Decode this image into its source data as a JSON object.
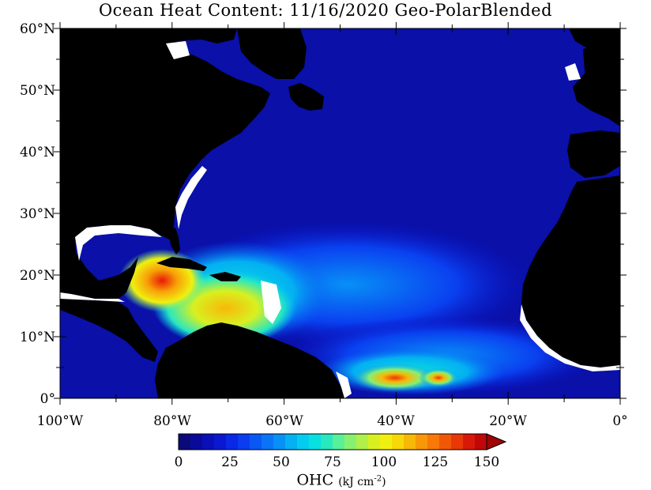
{
  "map": {
    "title": "Ocean Heat Content: 11/16/2020 Geo-PolarBlended",
    "lat_ticks": [
      "60°N",
      "50°N",
      "40°N",
      "30°N",
      "20°N",
      "10°N",
      "0°"
    ],
    "lon_ticks": [
      "100°W",
      "80°W",
      "60°W",
      "40°W",
      "20°W",
      "0°"
    ],
    "extent": {
      "lon_min": -100,
      "lon_max": 0,
      "lat_min": 0,
      "lat_max": 60
    },
    "colors": {
      "land": "#000000",
      "no_data": "#ffffff",
      "ocean_base": "#0a10a8"
    }
  },
  "colorbar": {
    "ticks": [
      "0",
      "25",
      "50",
      "75",
      "100",
      "125",
      "150"
    ],
    "label_main": "OHC",
    "label_unit": "(kJ cm",
    "label_exp": "-2",
    "label_close": ")",
    "colors": [
      "#0a0a7a",
      "#0a0a9a",
      "#0a10b8",
      "#0a18d0",
      "#0a28e6",
      "#0a3cf0",
      "#0a58f4",
      "#0a74f6",
      "#0890f6",
      "#04b0f2",
      "#04ccee",
      "#08e0e0",
      "#28e8c0",
      "#58f098",
      "#88f070",
      "#b0f048",
      "#d8f020",
      "#f0f010",
      "#f8d808",
      "#f8b808",
      "#f89808",
      "#f87808",
      "#f05808",
      "#e83808",
      "#d81808",
      "#c00808",
      "#a00404"
    ]
  }
}
